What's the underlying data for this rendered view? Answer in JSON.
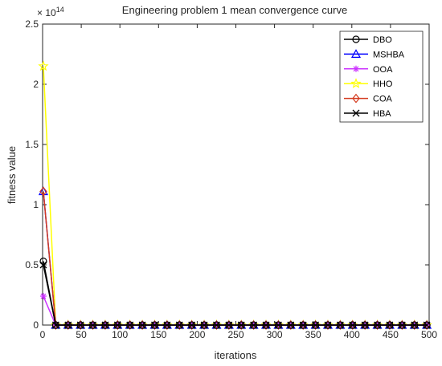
{
  "chart_data": {
    "type": "line",
    "title": "Engineering problem  1  mean convergence curve",
    "xlabel": "iterations",
    "ylabel": "fitness value",
    "y_exponent_label": "× 10",
    "y_exponent_power": "14",
    "xlim": [
      0,
      500
    ],
    "ylim": [
      0,
      2.5
    ],
    "xticks": [
      0,
      50,
      100,
      150,
      200,
      250,
      300,
      350,
      400,
      450,
      500
    ],
    "yticks": [
      0,
      0.5,
      1,
      1.5,
      2,
      2.5
    ],
    "ytick_labels": [
      "0",
      "0.5",
      "1",
      "1.5",
      "2",
      "2.5"
    ],
    "xtick_labels": [
      "0",
      "50",
      "100",
      "150",
      "200",
      "250",
      "300",
      "350",
      "400",
      "450",
      "500"
    ],
    "grid": false,
    "legend_position": "top-right",
    "x": [
      1,
      17,
      33,
      49,
      65,
      81,
      97,
      113,
      129,
      145,
      161,
      177,
      193,
      209,
      225,
      241,
      257,
      273,
      289,
      305,
      321,
      337,
      353,
      369,
      385,
      401,
      417,
      433,
      449,
      465,
      481,
      497
    ],
    "series": [
      {
        "name": "DBO",
        "color": "#000000",
        "marker": "circle",
        "start": 0.53
      },
      {
        "name": "MSHBA",
        "color": "#0000ff",
        "marker": "triangle",
        "start": 1.11
      },
      {
        "name": "OOA",
        "color": "#cc33ff",
        "marker": "asterisk",
        "start": 0.24
      },
      {
        "name": "HHO",
        "color": "#ffff00",
        "marker": "star",
        "start": 2.15
      },
      {
        "name": "COA",
        "color": "#d43b1f",
        "marker": "diamond",
        "start": 1.11
      },
      {
        "name": "HBA",
        "color": "#000000",
        "marker": "x",
        "start": 0.5
      }
    ]
  }
}
